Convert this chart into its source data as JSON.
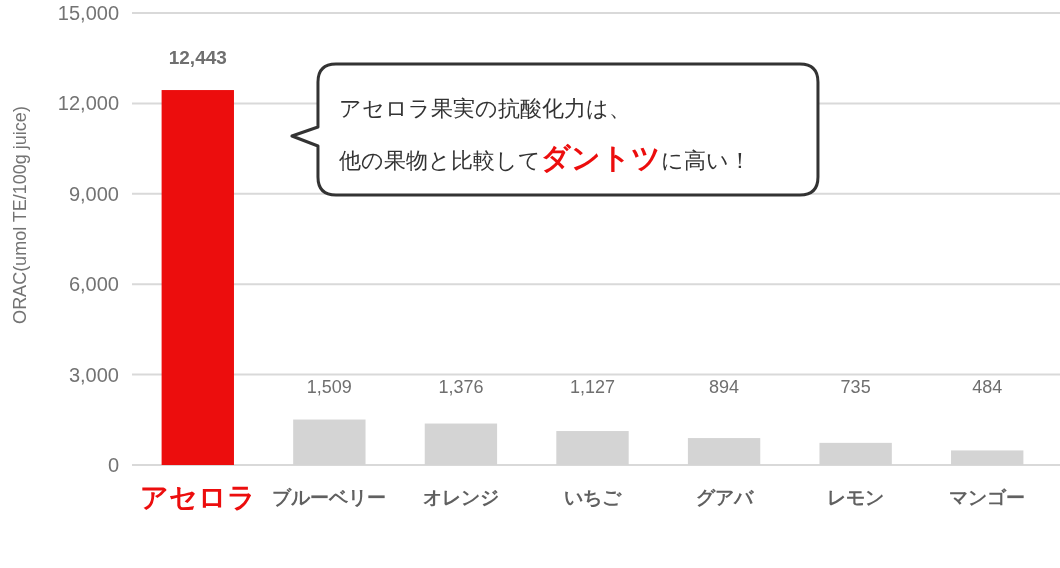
{
  "chart_data": {
    "type": "bar",
    "ylabel": "ORAC(umol TE/100g juice)",
    "categories": [
      "アセロラ",
      "ブルーベリー",
      "オレンジ",
      "いちご",
      "グアバ",
      "レモン",
      "マンゴー"
    ],
    "values": [
      12443,
      1509,
      1376,
      1127,
      894,
      735,
      484
    ],
    "value_labels": [
      "12,443",
      "1,509",
      "1,376",
      "1,127",
      "894",
      "735",
      "484"
    ],
    "colors": [
      "#ec0d0d",
      "#d4d4d4",
      "#d4d4d4",
      "#d4d4d4",
      "#d4d4d4",
      "#d4d4d4",
      "#d4d4d4"
    ],
    "ylim": [
      0,
      15000
    ],
    "yticks": [
      0,
      {
        "value": 3000,
        "label": "3,000"
      },
      {
        "value": 6000,
        "label": "6,000"
      },
      {
        "value": 9000,
        "label": "9,000"
      },
      {
        "value": 12000,
        "label": "12,000"
      },
      {
        "value": 15000,
        "label": "15,000"
      }
    ],
    "grid": "y",
    "annotations": [
      "アセロラ果実の抗酸化力は、",
      "他の果物と比較して",
      "ダントツ",
      "に高い！"
    ]
  }
}
